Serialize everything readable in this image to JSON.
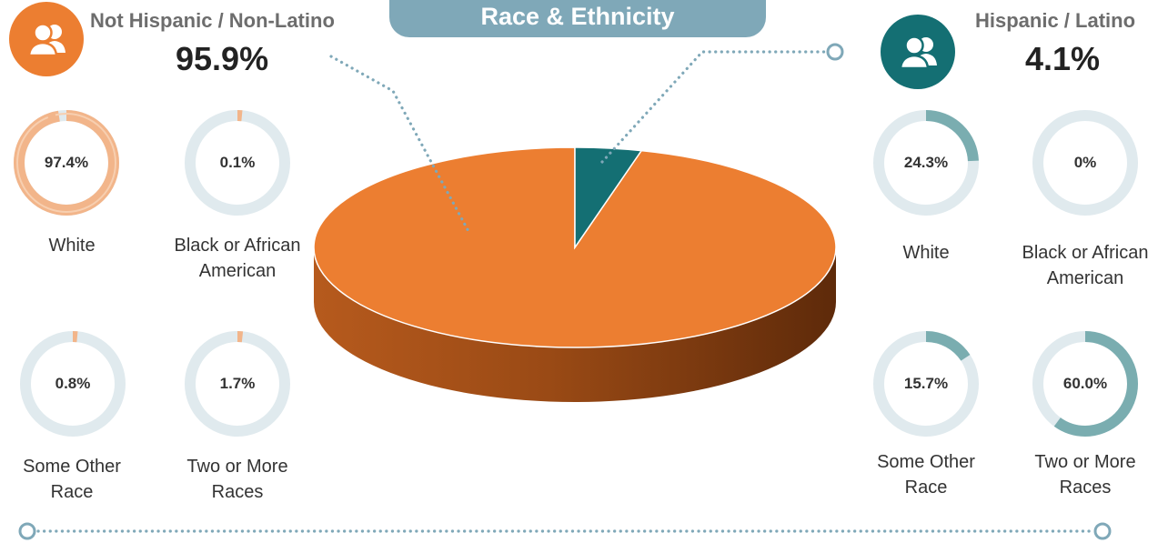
{
  "title": "Race & Ethnicity",
  "colors": {
    "not_hispanic": "#ec7e31",
    "not_hispanic_light": "#f2b58a",
    "hispanic": "#146f73",
    "hispanic_light": "#7aadb0",
    "track": "#e0eaee",
    "pill": "#7fa8b8",
    "dots": "#7fa8b8"
  },
  "groups": {
    "not_hispanic": {
      "label": "Not Hispanic / Non-Latino",
      "percent_text": "95.9%",
      "icon": "people-icon",
      "categories": [
        {
          "label_lines": [
            "White"
          ],
          "value_text": "97.4%",
          "value": 97.4
        },
        {
          "label_lines": [
            "Black or African",
            "American"
          ],
          "value_text": "0.1%",
          "value": 0.1
        },
        {
          "label_lines": [
            "Some Other",
            "Race"
          ],
          "value_text": "0.8%",
          "value": 0.8
        },
        {
          "label_lines": [
            "Two or More",
            "Races"
          ],
          "value_text": "1.7%",
          "value": 1.7
        }
      ]
    },
    "hispanic": {
      "label": "Hispanic / Latino",
      "percent_text": "4.1%",
      "icon": "people-icon",
      "categories": [
        {
          "label_lines": [
            "White"
          ],
          "value_text": "24.3%",
          "value": 24.3
        },
        {
          "label_lines": [
            "Black or African",
            "American"
          ],
          "value_text": "0%",
          "value": 0
        },
        {
          "label_lines": [
            "Some Other",
            "Race"
          ],
          "value_text": "15.7%",
          "value": 15.7
        },
        {
          "label_lines": [
            "Two or More",
            "Races"
          ],
          "value_text": "60.0%",
          "value": 60.0
        }
      ]
    }
  },
  "chart_data": [
    {
      "type": "pie",
      "title": "Race & Ethnicity",
      "categories": [
        "Not Hispanic / Non-Latino",
        "Hispanic / Latino"
      ],
      "values": [
        95.9,
        4.1
      ]
    },
    {
      "type": "pie",
      "title": "Not Hispanic / Non-Latino",
      "categories": [
        "White",
        "Black or African American",
        "Some Other Race",
        "Two or More Races"
      ],
      "values": [
        97.4,
        0.1,
        0.8,
        1.7
      ]
    },
    {
      "type": "pie",
      "title": "Hispanic / Latino",
      "categories": [
        "White",
        "Black or African American",
        "Some Other Race",
        "Two or More Races"
      ],
      "values": [
        24.3,
        0,
        15.7,
        60.0
      ]
    }
  ]
}
